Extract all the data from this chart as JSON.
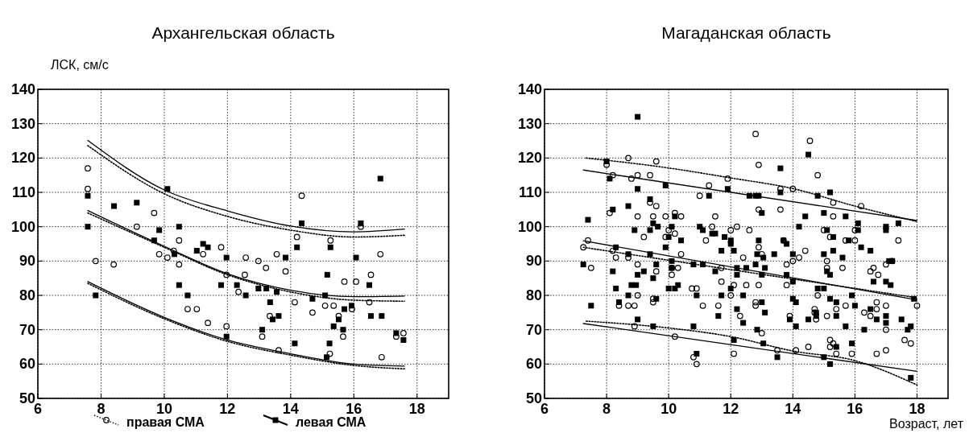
{
  "chart_data": [
    {
      "type": "scatter",
      "title": "Архангельская область",
      "ylabel": "ЛСК, см/с",
      "xlim": [
        6,
        19
      ],
      "xticks": [
        6,
        8,
        10,
        12,
        14,
        16,
        18
      ],
      "ylim": [
        50,
        140
      ],
      "yticks": [
        50,
        60,
        70,
        80,
        90,
        100,
        110,
        120,
        130,
        140
      ],
      "grid": true,
      "legend": "bottom",
      "series": [
        {
          "name": "правая СМА",
          "type": "scatter",
          "marker": "circle",
          "color": "#000000",
          "x": [
            7.58,
            7.58,
            7.83,
            8.4,
            9.13,
            9.68,
            9.84,
            10.1,
            10.3,
            10.47,
            10.47,
            10.74,
            11.03,
            11.23,
            11.38,
            11.8,
            11.97,
            11.97,
            12.35,
            12.58,
            12.55,
            12.98,
            13.22,
            13.56,
            13.84,
            13.1,
            13.34,
            13.62,
            14.13,
            14.2,
            14.35,
            14.69,
            15.09,
            15.36,
            15.26,
            15.52,
            15.66,
            15.24,
            15.7,
            16.07,
            15.94,
            16.22,
            16.54,
            16.49,
            16.84,
            16.88,
            17.34,
            17.57
          ],
          "values": [
            117,
            111,
            90,
            89,
            100,
            104,
            92,
            91,
            93,
            96,
            89,
            76,
            76,
            92,
            72,
            94,
            71,
            86,
            81,
            91,
            86,
            90,
            88,
            92,
            87,
            68,
            74,
            64,
            78,
            97,
            109,
            75,
            77,
            77,
            96,
            74,
            68,
            63,
            84,
            84,
            76,
            100,
            86,
            78,
            92,
            62,
            68,
            69
          ]
        },
        {
          "name": "левая СМА",
          "type": "scatter",
          "marker": "square",
          "color": "#000000",
          "x": [
            7.58,
            7.58,
            7.83,
            8.41,
            9.13,
            9.68,
            9.84,
            10.1,
            10.47,
            10.47,
            10.32,
            10.74,
            11.03,
            11.23,
            11.38,
            11.8,
            11.97,
            11.97,
            12.3,
            12.58,
            12.98,
            13.23,
            13.56,
            13.84,
            13.35,
            13.43,
            13.62,
            13.1,
            14.13,
            14.2,
            14.35,
            14.69,
            15.09,
            15.16,
            15.26,
            15.36,
            15.52,
            15.7,
            15.66,
            15.23,
            15.14,
            15.93,
            16.07,
            16.22,
            16.49,
            16.54,
            16.84,
            16.88,
            17.34,
            17.57
          ],
          "values": [
            109,
            100,
            80,
            106,
            107,
            96,
            99,
            111,
            100,
            83,
            92,
            80,
            93,
            95,
            94,
            83,
            91,
            68,
            83,
            80,
            82,
            82,
            81,
            91,
            78,
            73,
            74,
            70,
            66,
            94,
            101,
            79,
            80,
            86,
            94,
            71,
            73,
            76,
            70,
            66,
            62,
            77,
            91,
            101,
            83,
            74,
            114,
            74,
            69,
            67
          ]
        },
        {
          "type": "line",
          "marker": "none",
          "line_style": "dotted",
          "color": "#000000",
          "x": [
            7.58,
            10,
            12,
            14,
            16,
            17.6
          ],
          "values": [
            104,
            94,
            86,
            81,
            78.6,
            78.3
          ]
        },
        {
          "type": "line",
          "marker": "none",
          "line_style": "dotted",
          "color": "#000000",
          "x": [
            7.58,
            10,
            12,
            14,
            16,
            17.6
          ],
          "values": [
            123.6,
            109.6,
            103,
            99,
            97,
            97.5
          ]
        },
        {
          "type": "line",
          "marker": "none",
          "line_style": "dotted",
          "color": "#000000",
          "x": [
            7.58,
            10,
            12,
            14,
            16,
            17.6
          ],
          "values": [
            83.5,
            73.2,
            66.6,
            62.6,
            59.6,
            58.6
          ]
        },
        {
          "type": "line",
          "marker": "none",
          "line_style": "solid",
          "color": "#000000",
          "x": [
            7.58,
            10,
            12,
            14,
            16,
            17.6
          ],
          "values": [
            104.7,
            94.3,
            86.3,
            81.5,
            79.6,
            79.8
          ]
        },
        {
          "type": "line",
          "marker": "none",
          "line_style": "solid",
          "color": "#000000",
          "x": [
            7.58,
            10,
            12,
            14,
            16,
            17.6
          ],
          "values": [
            125.1,
            110.7,
            104.6,
            100.2,
            98.5,
            99.3
          ]
        },
        {
          "type": "line",
          "marker": "none",
          "line_style": "solid",
          "color": "#000000",
          "x": [
            7.58,
            10,
            12,
            14,
            16,
            17.6
          ],
          "values": [
            84,
            73.6,
            67,
            63,
            60,
            59.4
          ]
        }
      ]
    },
    {
      "type": "scatter",
      "title": "Магаданская область",
      "xlabel": "Возраст, лет",
      "xlim": [
        6,
        19
      ],
      "xticks": [
        6,
        8,
        10,
        12,
        14,
        16,
        18
      ],
      "ylim": [
        50,
        140
      ],
      "yticks": [
        50,
        60,
        70,
        80,
        90,
        100,
        110,
        120,
        130,
        140
      ],
      "grid": true,
      "series": [
        {
          "type": "scatter",
          "marker": "circle",
          "color": "#000000",
          "x": [
            8.0,
            8.7,
            9.6,
            8.2,
            8.8,
            9.0,
            9.4,
            9.4,
            9.6,
            8.1,
            9.0,
            9.5,
            9.9,
            10.2,
            10.4,
            9.2,
            9.9,
            10.0,
            10.2,
            7.4,
            7.25,
            8.2,
            8.3,
            8.7,
            10.4,
            7.5,
            9.0,
            9.6,
            10.1,
            10.3,
            10.1,
            9.0,
            9.5,
            9.5,
            8.4,
            8.7,
            8.9,
            8.9,
            10.2,
            12.8,
            14.55,
            12.9,
            11.9,
            11.3,
            11.0,
            13.6,
            14.0,
            12.9,
            13.6,
            11.5,
            11.4,
            12.0,
            12.2,
            12.6,
            11.2,
            12.9,
            13.7,
            14.4,
            11.7,
            12.4,
            13.0,
            13.8,
            14.0,
            14.2,
            11.7,
            12.1,
            12.5,
            12.9,
            10.75,
            10.9,
            12.0,
            13.8,
            11.1,
            11.6,
            12.8,
            12.8,
            12.3,
            13.9,
            14.7,
            13.0,
            12.1,
            13.5,
            14.1,
            14.5,
            10.8,
            10.9,
            14.8,
            15.3,
            16.2,
            15.3,
            15.0,
            15.2,
            16.0,
            15.7,
            16.0,
            17.4,
            15.1,
            15.1,
            15.6,
            16.5,
            16.6,
            16.75,
            17.0,
            17.2,
            14.8,
            14.7,
            14.75,
            15.1,
            15.4,
            15.7,
            16.7,
            16.7,
            16.3,
            16.5,
            17.0,
            18.0,
            17.0,
            17.6,
            17.8,
            15.2,
            15.3,
            15.2,
            15.4,
            15.9,
            16.7,
            17.0
          ],
          "values": [
            118,
            120,
            119,
            115,
            114,
            115,
            115,
            107,
            106,
            104,
            103,
            103,
            103,
            104,
            103,
            97,
            97,
            99,
            98,
            96,
            94,
            93,
            91,
            91,
            92,
            88,
            89,
            87,
            88,
            88,
            86,
            80,
            79,
            78,
            77,
            77,
            77,
            71,
            68,
            127,
            125,
            118,
            114,
            112,
            109,
            111,
            111,
            105,
            105,
            103,
            100,
            99,
            100,
            99,
            96,
            94,
            96,
            93,
            88,
            91,
            92,
            89,
            90,
            91,
            84,
            83,
            83,
            83,
            82,
            82,
            80,
            83,
            77,
            77,
            78,
            77,
            74,
            74,
            75,
            69,
            63,
            64,
            64,
            65,
            62,
            60,
            115,
            107,
            106,
            103,
            99,
            97,
            99,
            96,
            96,
            96,
            90,
            88,
            88,
            87,
            88,
            86,
            89,
            90,
            80,
            76,
            73,
            74,
            76,
            77,
            78,
            76,
            75,
            74,
            77,
            77,
            70,
            67,
            66,
            67,
            66,
            65,
            63,
            63,
            63,
            64
          ]
        },
        {
          "type": "scatter",
          "marker": "square",
          "color": "#000000",
          "x": [
            9.0,
            8.0,
            8.1,
            9.0,
            9.9,
            9.4,
            8.7,
            8.2,
            7.4,
            8.9,
            9.4,
            9.5,
            9.65,
            10.2,
            10.1,
            10.0,
            10.4,
            9.9,
            9.4,
            8.7,
            8.3,
            7.25,
            8.2,
            9.0,
            9.2,
            9.6,
            9.5,
            10.1,
            10.1,
            8.8,
            8.95,
            8.3,
            8.7,
            8.4,
            9.6,
            10.0,
            10.2,
            10.3,
            7.5,
            9.0,
            9.5,
            14.5,
            13.6,
            12.6,
            12.8,
            12.9,
            11.9,
            11.3,
            13.6,
            13.0,
            14.4,
            14.2,
            11.0,
            11.1,
            11.4,
            11.5,
            11.8,
            12.0,
            12.0,
            12.9,
            13.7,
            13.8,
            11.7,
            12.1,
            12.85,
            13.05,
            13.4,
            14.0,
            10.8,
            11.1,
            11.5,
            12.2,
            12.2,
            12.5,
            12.8,
            13.1,
            13.0,
            13.8,
            14.0,
            12.0,
            11.7,
            12.4,
            10.9,
            13.0,
            14.0,
            14.1,
            11.6,
            12.2,
            12.4,
            13.1,
            13.9,
            14.1,
            14.5,
            10.8,
            12.85,
            12.1,
            13.05,
            10.9,
            13.5,
            15.2,
            14.8,
            15.0,
            15.7,
            15.1,
            15.3,
            16.1,
            16.1,
            17.0,
            17.0,
            17.4,
            15.0,
            15.3,
            15.8,
            16.2,
            16.5,
            15.6,
            15.1,
            15.2,
            17.1,
            17.2,
            16.6,
            17.0,
            17.15,
            14.8,
            15.0,
            15.2,
            15.4,
            15.9,
            16.0,
            16.5,
            16.7,
            14.75,
            14.75,
            15.4,
            17.0,
            17.0,
            17.5,
            15.7,
            16.3,
            17.7,
            17.8,
            17.9,
            15.9,
            15.4,
            15.0,
            15.2,
            17.8
          ],
          "values": [
            132,
            119,
            114,
            111,
            112,
            108,
            106,
            105,
            102,
            99,
            99,
            101,
            100,
            103,
            100,
            97,
            96,
            94,
            92,
            92,
            94,
            89,
            87,
            86,
            87,
            89,
            85,
            88,
            90,
            83,
            83,
            82,
            80,
            78,
            79,
            82,
            82,
            83,
            77,
            73,
            71,
            121,
            117,
            109,
            109,
            109,
            111,
            109,
            110,
            104,
            103,
            100,
            100,
            99,
            98,
            98,
            97,
            96,
            95,
            96,
            96,
            95,
            93,
            93,
            92,
            91,
            92,
            92,
            89,
            89,
            87,
            88,
            86,
            88,
            89,
            88,
            86,
            86,
            84,
            82,
            80,
            80,
            80,
            78,
            79,
            78,
            74,
            76,
            72,
            75,
            73,
            71,
            73,
            71,
            70,
            67,
            66,
            63,
            62,
            110,
            109,
            104,
            103,
            99,
            97,
            101,
            99,
            100,
            99,
            101,
            92,
            93,
            96,
            94,
            93,
            91,
            87,
            86,
            90,
            90,
            84,
            84,
            83,
            82,
            82,
            79,
            78,
            80,
            77,
            76,
            73,
            75,
            74,
            74,
            74,
            72,
            73,
            71,
            70,
            70,
            71,
            79,
            66,
            65,
            62,
            60,
            56
          ]
        },
        {
          "type": "line",
          "marker": "none",
          "line_style": "dotted",
          "color": "#000000",
          "x": [
            7.25,
            18
          ],
          "values": [
            94,
            79.3
          ]
        },
        {
          "type": "line",
          "marker": "none",
          "line_style": "dotted",
          "color": "#000000",
          "x": [
            7.34,
            10,
            12,
            14,
            16,
            18
          ],
          "values": [
            120,
            117.1,
            114.2,
            111.1,
            106,
            101.5
          ]
        },
        {
          "type": "line",
          "marker": "none",
          "line_style": "dotted",
          "color": "#000000",
          "x": [
            7.34,
            10,
            12,
            14,
            16,
            18
          ],
          "values": [
            72.5,
            70.5,
            68,
            63.8,
            61,
            53.9
          ]
        },
        {
          "type": "line",
          "marker": "none",
          "line_style": "solid",
          "color": "#000000",
          "x": [
            7.25,
            18
          ],
          "values": [
            95.9,
            78.7
          ]
        },
        {
          "type": "line",
          "marker": "none",
          "line_style": "solid",
          "color": "#000000",
          "x": [
            7.25,
            18
          ],
          "values": [
            116.5,
            101.8
          ]
        },
        {
          "type": "line",
          "marker": "none",
          "line_style": "solid",
          "color": "#000000",
          "x": [
            7.25,
            18
          ],
          "values": [
            71.8,
            57.9
          ]
        }
      ]
    }
  ]
}
